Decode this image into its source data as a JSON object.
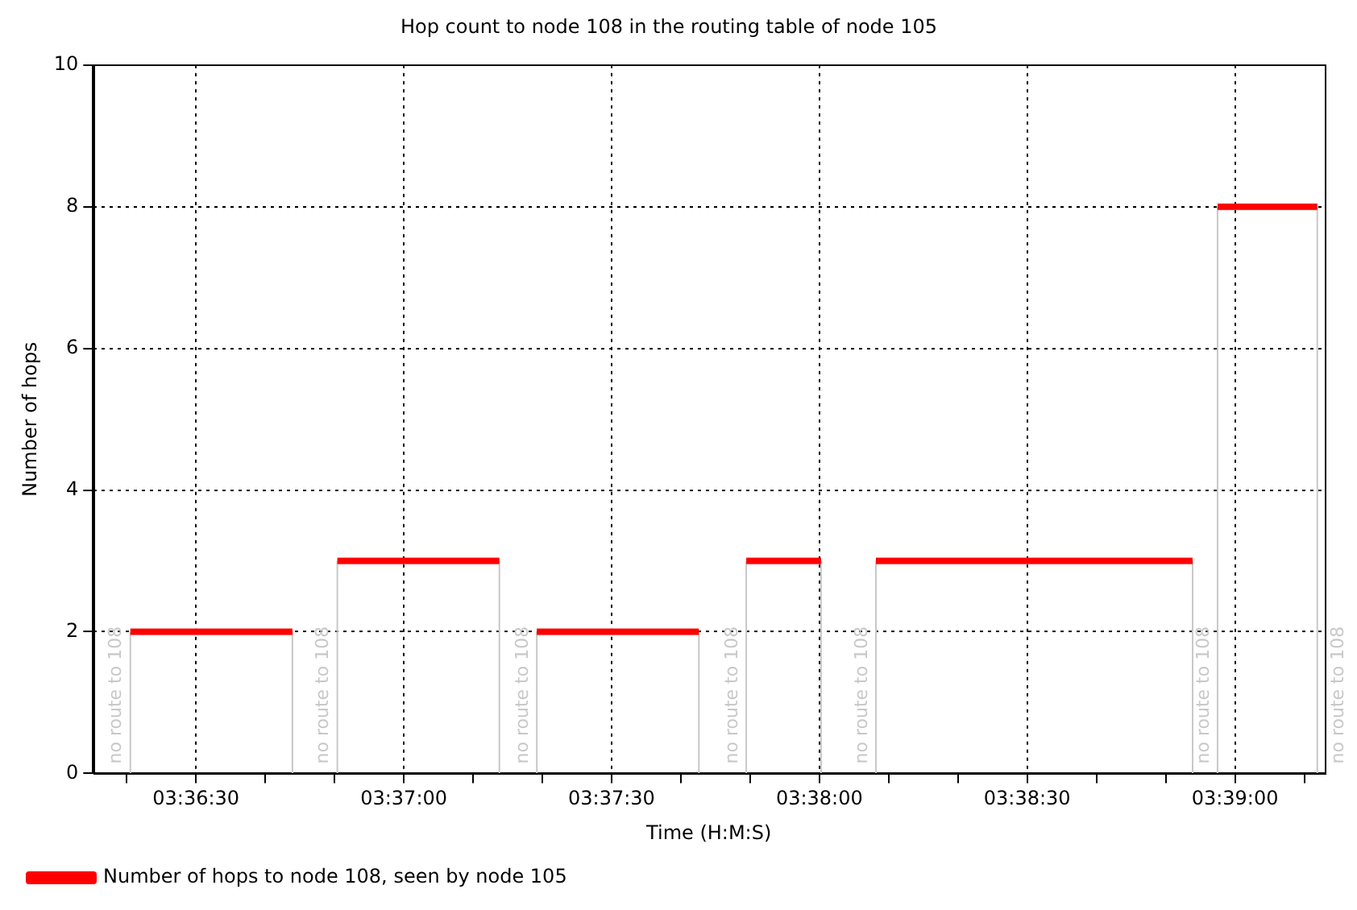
{
  "chart_data": {
    "type": "line",
    "title": "Hop count to node 108 in the routing table of node 105",
    "xlabel": "Time (H:M:S)",
    "ylabel": "Number of hops",
    "series": [
      {
        "name": "Number of hops to node 108, seen by node 105",
        "color": "#ff0000",
        "x": [
          3.6057,
          3.6122
        ],
        "values": [
          2,
          2
        ]
      },
      {
        "color": "#ff0000",
        "x": [
          3.614,
          3.6205
        ],
        "values": [
          3,
          3
        ]
      },
      {
        "color": "#ff0000",
        "x": [
          3.622,
          3.6285
        ],
        "values": [
          2,
          2
        ]
      },
      {
        "color": "#ff0000",
        "x": [
          3.6304,
          3.6334
        ],
        "values": [
          3,
          3
        ]
      },
      {
        "color": "#ff0000",
        "x": [
          3.6356,
          3.6483
        ],
        "values": [
          3,
          3
        ]
      },
      {
        "color": "#ff0000",
        "x": [
          3.6493,
          3.6533
        ],
        "values": [
          8,
          8
        ]
      },
      {
        "color": "#c8c8c8",
        "x": [
          3.6057,
          3.6057
        ],
        "values": [
          0,
          2
        ]
      },
      {
        "color": "#c8c8c8",
        "x": [
          3.6122,
          3.6122
        ],
        "values": [
          0,
          2
        ]
      },
      {
        "color": "#c8c8c8",
        "x": [
          3.614,
          3.614
        ],
        "values": [
          0,
          3
        ]
      },
      {
        "color": "#c8c8c8",
        "x": [
          3.6205,
          3.6205
        ],
        "values": [
          0,
          3
        ]
      },
      {
        "color": "#c8c8c8",
        "x": [
          3.622,
          3.622
        ],
        "values": [
          0,
          2
        ]
      },
      {
        "color": "#c8c8c8",
        "x": [
          3.6285,
          3.6285
        ],
        "values": [
          0,
          2
        ]
      },
      {
        "color": "#c8c8c8",
        "x": [
          3.6304,
          3.6304
        ],
        "values": [
          0,
          3
        ]
      },
      {
        "color": "#c8c8c8",
        "x": [
          3.6334,
          3.6334
        ],
        "values": [
          0,
          3
        ]
      },
      {
        "color": "#c8c8c8",
        "x": [
          3.6356,
          3.6356
        ],
        "values": [
          0,
          3
        ]
      },
      {
        "color": "#c8c8c8",
        "x": [
          3.6483,
          3.6483
        ],
        "values": [
          0,
          3
        ]
      },
      {
        "color": "#c8c8c8",
        "x": [
          3.6493,
          3.6493
        ],
        "values": [
          0,
          8
        ]
      },
      {
        "color": "#c8c8c8",
        "x": [
          3.6533,
          3.6533
        ],
        "values": [
          0,
          8
        ]
      }
    ],
    "annotations": [
      {
        "text": "no route to 108",
        "x": 3.6057,
        "y": 0
      },
      {
        "text": "no route to 108",
        "x": 3.614,
        "y": 0
      },
      {
        "text": "no route to 108",
        "x": 3.622,
        "y": 0
      },
      {
        "text": "no route to 108",
        "x": 3.6304,
        "y": 0
      },
      {
        "text": "no route to 108",
        "x": 3.6356,
        "y": 0
      },
      {
        "text": "no route to 108",
        "x": 3.6493,
        "y": 0
      },
      {
        "text": "no route to 108",
        "x": 3.6533,
        "y": 0
      }
    ],
    "xlim": [
      3.6042,
      3.6536
    ],
    "xticks": [
      {
        "value": 3.605556,
        "label": null
      },
      {
        "value": 3.608333,
        "label": "03:36:30"
      },
      {
        "value": 3.611111,
        "label": null
      },
      {
        "value": 3.613889,
        "label": null
      },
      {
        "value": 3.616667,
        "label": "03:37:00"
      },
      {
        "value": 3.619444,
        "label": null
      },
      {
        "value": 3.622222,
        "label": null
      },
      {
        "value": 3.625,
        "label": "03:37:30"
      },
      {
        "value": 3.627778,
        "label": null
      },
      {
        "value": 3.630556,
        "label": null
      },
      {
        "value": 3.633333,
        "label": "03:38:00"
      },
      {
        "value": 3.636111,
        "label": null
      },
      {
        "value": 3.638889,
        "label": null
      },
      {
        "value": 3.641667,
        "label": "03:38:30"
      },
      {
        "value": 3.644444,
        "label": null
      },
      {
        "value": 3.647222,
        "label": null
      },
      {
        "value": 3.65,
        "label": "03:39:00"
      },
      {
        "value": 3.652778,
        "label": null
      }
    ],
    "ylim": [
      0,
      10
    ],
    "yticks": [
      0,
      2,
      4,
      6,
      8,
      10
    ],
    "grid": true,
    "legend": "bottom left",
    "marker": "none"
  }
}
